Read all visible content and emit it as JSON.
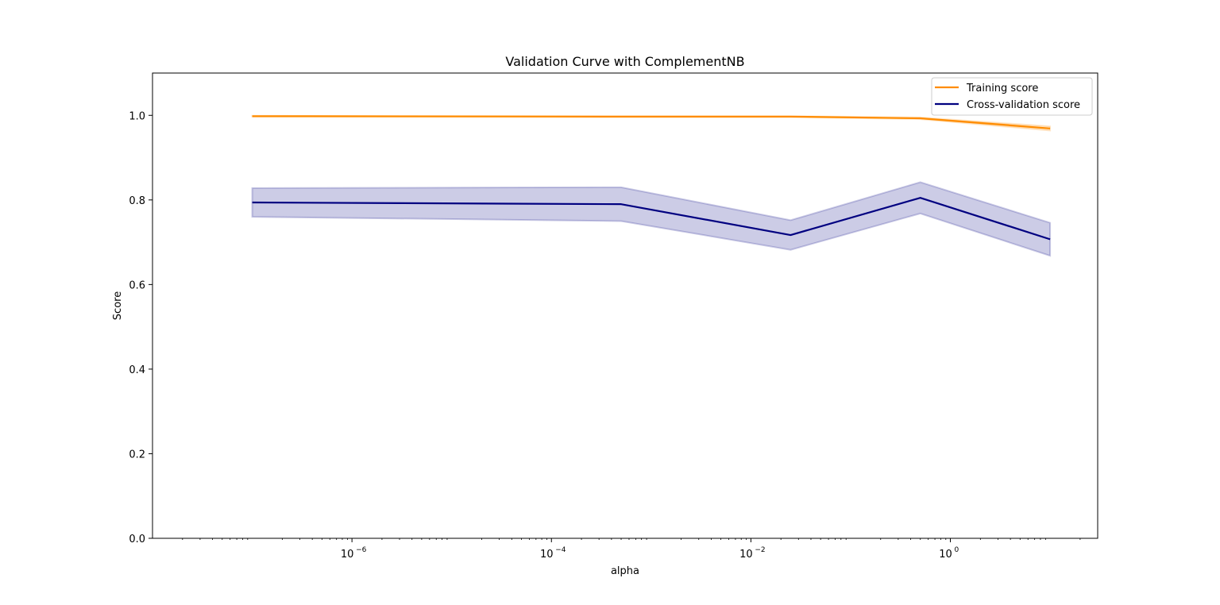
{
  "chart_data": {
    "type": "line",
    "title": "Validation Curve with ComplementNB",
    "xlabel": "alpha",
    "ylabel": "Score",
    "xscale": "log",
    "xlim": [
      1e-08,
      30
    ],
    "ylim": [
      0.0,
      1.1
    ],
    "grid": false,
    "legend_position": "top-right",
    "x": [
      1e-07,
      0.0005,
      0.025,
      0.5,
      10
    ],
    "x_ticks": [
      {
        "value": 1e-06,
        "base": "10",
        "exp": "−6"
      },
      {
        "value": 0.0001,
        "base": "10",
        "exp": "−4"
      },
      {
        "value": 0.01,
        "base": "10",
        "exp": "−2"
      },
      {
        "value": 1,
        "base": "10",
        "exp": "0"
      }
    ],
    "y_ticks": [
      "0.0",
      "0.2",
      "0.4",
      "0.6",
      "0.8",
      "1.0"
    ],
    "series": [
      {
        "name": "Training score",
        "color": "#ff8c00",
        "values": [
          0.998,
          0.997,
          0.997,
          0.993,
          0.969
        ],
        "band_lower": [
          0.997,
          0.996,
          0.996,
          0.991,
          0.964
        ],
        "band_upper": [
          0.999,
          0.998,
          0.998,
          0.995,
          0.974
        ]
      },
      {
        "name": "Cross-validation score",
        "color": "#000080",
        "values": [
          0.794,
          0.79,
          0.717,
          0.805,
          0.707
        ],
        "band_lower": [
          0.76,
          0.75,
          0.682,
          0.768,
          0.668
        ],
        "band_upper": [
          0.828,
          0.83,
          0.752,
          0.842,
          0.746
        ]
      }
    ]
  }
}
